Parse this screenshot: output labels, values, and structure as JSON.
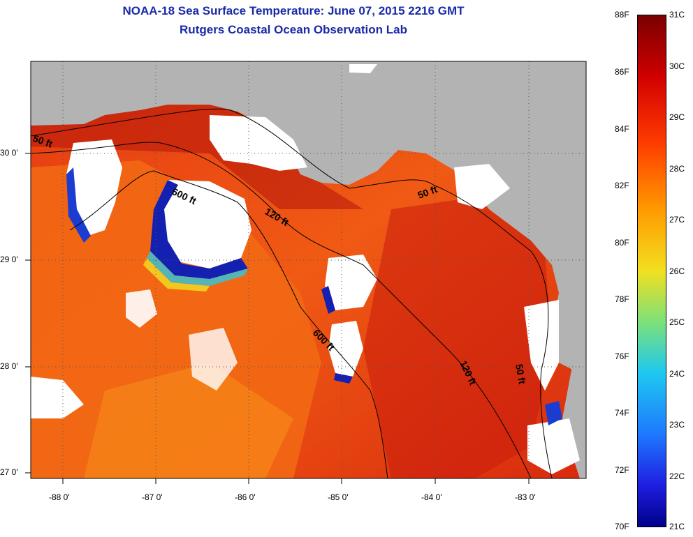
{
  "header": {
    "title_line1": "NOAA-18 Sea Surface Temperature:  June 07, 2015 2216 GMT",
    "title_line2": "Rutgers Coastal Ocean Observation Lab"
  },
  "axes": {
    "lat_labels": [
      "30 0'",
      "29 0'",
      "28 0'",
      "27 0'"
    ],
    "lon_labels": [
      "-88 0'",
      "-87 0'",
      "-86 0'",
      "-85 0'",
      "-84 0'",
      "-83 0'"
    ]
  },
  "contours": {
    "labels": [
      "50 ft",
      "600 ft",
      "120 ft",
      "50 ft",
      "600 ft",
      "120 ft",
      "50 ft"
    ]
  },
  "colorbar": {
    "fahrenheit": [
      "88F",
      "86F",
      "84F",
      "82F",
      "80F",
      "78F",
      "76F",
      "74F",
      "72F",
      "70F"
    ],
    "celsius": [
      "31C",
      "30C",
      "29C",
      "28C",
      "27C",
      "26C",
      "25C",
      "24C",
      "23C",
      "22C",
      "21C"
    ]
  },
  "colors": {
    "land": "#b3b3b3",
    "ocean_warm": "#ee3a10",
    "ocean_hot": "#c81c0c",
    "ocean_orange": "#f26a14",
    "cloud": "#ffffff",
    "cold_blue": "#1420b0",
    "title_blue": "#1a2aa8"
  }
}
